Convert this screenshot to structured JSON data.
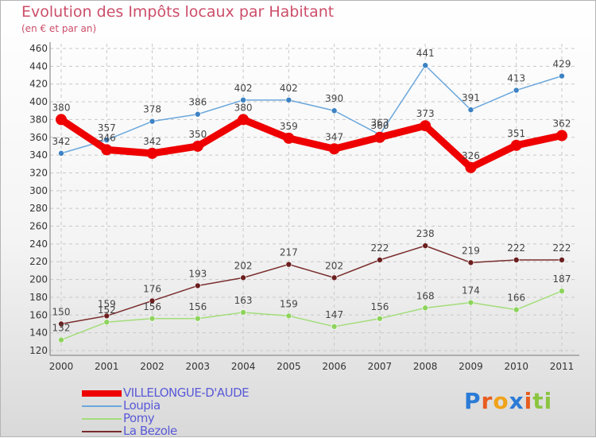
{
  "chart_data": {
    "type": "line",
    "title": "Evolution des Impôts locaux par Habitant",
    "subtitle": "(en € et par an)",
    "categories": [
      "2000",
      "2001",
      "2002",
      "2003",
      "2004",
      "2005",
      "2006",
      "2007",
      "2008",
      "2009",
      "2010",
      "2011"
    ],
    "ylim": [
      120,
      460
    ],
    "yticks": [
      120,
      140,
      160,
      180,
      200,
      220,
      240,
      260,
      280,
      300,
      320,
      340,
      360,
      380,
      400,
      420,
      440,
      460
    ],
    "grid": true,
    "series": [
      {
        "name": "Loupia",
        "color": "#6aa7dc",
        "dot": "#3d82c4",
        "values": [
          342,
          357,
          378,
          386,
          402,
          402,
          390,
          363,
          441,
          391,
          413,
          429
        ]
      },
      {
        "name": "Pomy",
        "color": "#a3dd7a",
        "dot": "#8dd35c",
        "values": [
          132,
          152,
          156,
          156,
          163,
          159,
          147,
          156,
          168,
          174,
          166,
          187
        ]
      },
      {
        "name": "La Bezole",
        "color": "#7a2c2c",
        "dot": "#6b1f1f",
        "values": [
          150,
          159,
          176,
          193,
          202,
          217,
          202,
          222,
          238,
          219,
          222,
          222
        ]
      },
      {
        "name": "VILLELONGUE-D'AUDE",
        "color": "#ee0000",
        "dot": "#ee0000",
        "values": [
          380,
          346,
          342,
          350,
          380,
          359,
          347,
          360,
          373,
          326,
          351,
          362
        ]
      }
    ],
    "labels": {
      "Loupia": [
        "342",
        "357",
        "378",
        "386",
        "402",
        "402",
        "390",
        "363",
        "441",
        "391",
        "413",
        "429"
      ],
      "Pomy": [
        "132",
        "152",
        "156",
        "156",
        "163",
        "159",
        "147",
        "156",
        "168",
        "174",
        "166",
        "187"
      ],
      "La Bezole": [
        "150",
        "159",
        "176",
        "193",
        "202",
        "217",
        "202",
        "222",
        "238",
        "219",
        "222",
        "222"
      ],
      "VILLELONGUE-D'AUDE": [
        "380",
        "346",
        "342",
        "350",
        "380",
        "359",
        "347",
        "360",
        "373",
        "326",
        "351",
        "362"
      ]
    },
    "legend": [
      {
        "name": "VILLELONGUE-D'AUDE",
        "color": "#ee0000"
      },
      {
        "name": "Loupia",
        "color": "#6aa7dc"
      },
      {
        "name": "Pomy",
        "color": "#a3dd7a"
      },
      {
        "name": "La Bezole",
        "color": "#7a2c2c"
      }
    ]
  },
  "logo": {
    "letters": [
      "P",
      "r",
      "o",
      "x",
      "i",
      "t",
      "i"
    ],
    "colors": [
      "#2b7bd6",
      "#e85d1f",
      "#f0a21a",
      "#2b7bd6",
      "#e85d1f",
      "#8bc540",
      "#8bc540"
    ]
  }
}
